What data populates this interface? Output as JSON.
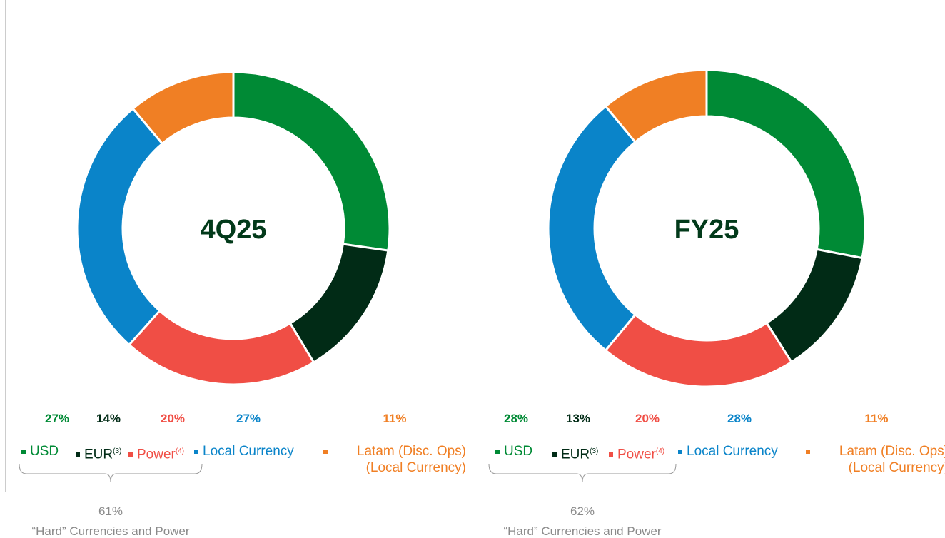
{
  "chart_data": [
    {
      "type": "donut",
      "title": "4Q25",
      "categories": [
        "USD",
        "EUR",
        "Power",
        "Local Currency",
        "Latam (Disc. Ops) (Local Currency)"
      ],
      "footnotes": [
        null,
        "(3)",
        "(4)",
        null,
        null
      ],
      "values": [
        27,
        14,
        20,
        27,
        11
      ],
      "value_labels": [
        "27%",
        "14%",
        "20%",
        "27%",
        "11%"
      ],
      "colors": [
        "#008a35",
        "#012b16",
        "#f04e45",
        "#0a84c9",
        "#f07f24"
      ],
      "bracket": {
        "label": "61%",
        "text": "“Hard” Currencies and Power"
      }
    },
    {
      "type": "donut",
      "title": "FY25",
      "categories": [
        "USD",
        "EUR",
        "Power",
        "Local Currency",
        "Latam (Disc. Ops) (Local Currency)"
      ],
      "footnotes": [
        null,
        "(3)",
        "(4)",
        null,
        null
      ],
      "values": [
        28,
        13,
        20,
        28,
        11
      ],
      "value_labels": [
        "28%",
        "13%",
        "20%",
        "28%",
        "11%"
      ],
      "colors": [
        "#008a35",
        "#012b16",
        "#f04e45",
        "#0a84c9",
        "#f07f24"
      ],
      "bracket": {
        "label": "62%",
        "text": "“Hard” Currencies and Power"
      }
    }
  ]
}
